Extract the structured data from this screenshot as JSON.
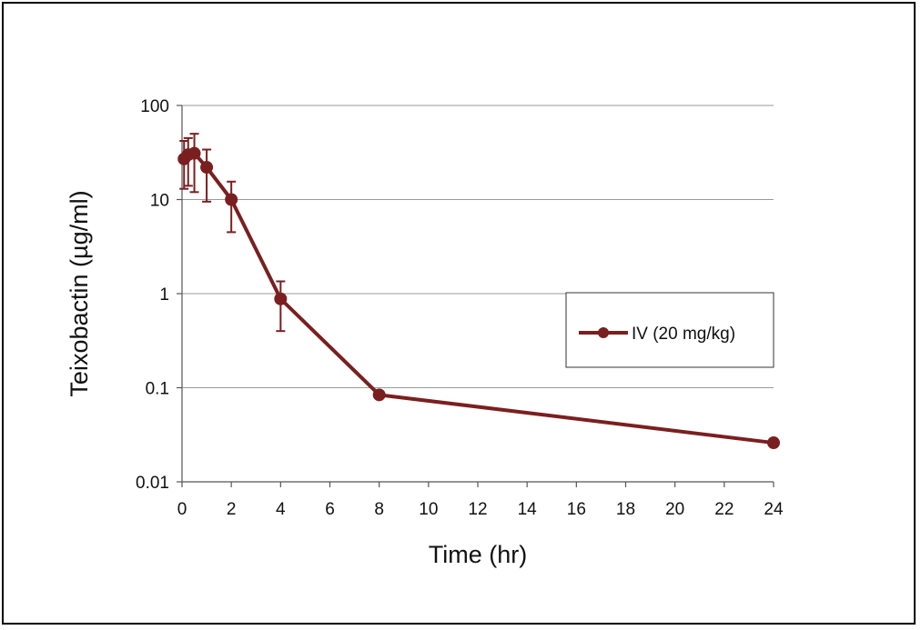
{
  "chart_data": {
    "type": "line",
    "title": "",
    "xlabel": "Time (hr)",
    "ylabel": "Teixobactin (µg/ml)",
    "xlim": [
      0,
      24
    ],
    "ylim": [
      0.01,
      100
    ],
    "yscale": "log",
    "x_ticks": [
      0,
      2,
      4,
      6,
      8,
      10,
      12,
      14,
      16,
      18,
      20,
      22,
      24
    ],
    "x_tick_labels": [
      "0",
      "2",
      "4",
      "6",
      "8",
      "10",
      "12",
      "14",
      "16",
      "18",
      "20",
      "22",
      "24"
    ],
    "y_ticks": [
      0.01,
      0.1,
      1,
      10,
      100
    ],
    "y_tick_labels": [
      "0.01",
      "0.1",
      "1",
      "10",
      "100"
    ],
    "grid": "horizontal",
    "legend_position": "right",
    "series": [
      {
        "name": "IV (20 mg/kg)",
        "color": "#7a1f1f",
        "x": [
          0.083,
          0.25,
          0.5,
          1,
          2,
          4,
          8,
          24
        ],
        "y": [
          27,
          30,
          31,
          22,
          10,
          0.88,
          0.084,
          0.026
        ],
        "y_err_low": [
          13,
          14,
          12,
          9.5,
          4.5,
          0.4,
          null,
          null
        ],
        "y_err_high": [
          42,
          45,
          50,
          34,
          15.5,
          1.35,
          null,
          null
        ]
      }
    ]
  }
}
